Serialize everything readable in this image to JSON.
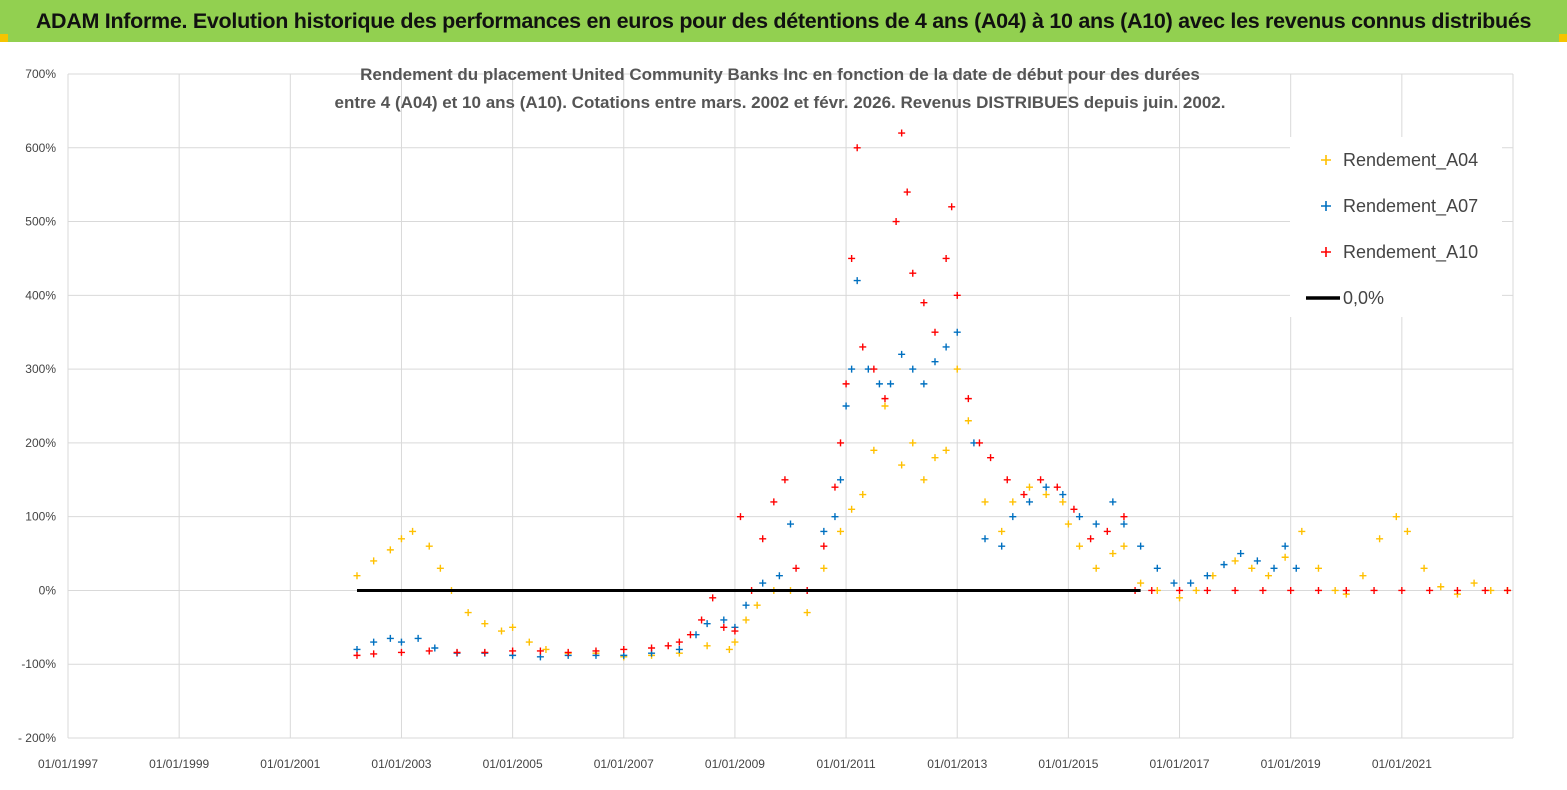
{
  "page": {
    "title": "ADAM Informe. Evolution historique des performances en euros pour des détentions de 4 ans (A04) à 10 ans (A10) avec les revenus connus distribués"
  },
  "colors": {
    "banner": "#92d050",
    "a04": "#ffc000",
    "a07": "#0070c0",
    "a10": "#ff0000",
    "zero": "#000000",
    "grid": "#d9d9d9"
  },
  "chart_data": {
    "type": "scatter",
    "title_lines": [
      "Rendement du placement United Community Banks Inc en fonction de la date de début pour des durées",
      "entre 4 (A04) et 10 ans (A10).  Cotations entre mars. 2002 et févr. 2026. Revenus DISTRIBUES depuis juin. 2002."
    ],
    "ylim": [
      -200,
      700
    ],
    "yticks": [
      -200,
      -100,
      0,
      100,
      200,
      300,
      400,
      500,
      600,
      700
    ],
    "ytick_labels": [
      "- 200%",
      "-100%",
      "0%",
      "100%",
      "200%",
      "300%",
      "400%",
      "500%",
      "600%",
      "700%"
    ],
    "xlim": [
      1997.0,
      2023.0
    ],
    "xticks": [
      1997,
      1999,
      2001,
      2003,
      2005,
      2007,
      2009,
      2011,
      2013,
      2015,
      2017,
      2019,
      2021
    ],
    "xtick_labels": [
      "01/01/1997",
      "01/01/1999",
      "01/01/2001",
      "01/01/2003",
      "01/01/2005",
      "01/01/2007",
      "01/01/2009",
      "01/01/2011",
      "01/01/2013",
      "01/01/2015",
      "01/01/2017",
      "01/01/2019",
      "01/01/2021"
    ],
    "legend_position": "top-right",
    "grid": true,
    "series": [
      {
        "name": "Rendement_A04",
        "color": "#ffc000",
        "x": [
          2002.2,
          2002.5,
          2002.8,
          2003.0,
          2003.2,
          2003.5,
          2003.7,
          2003.9,
          2004.2,
          2004.5,
          2004.8,
          2005.0,
          2005.3,
          2005.6,
          2006.0,
          2006.5,
          2007.0,
          2007.5,
          2008.0,
          2008.5,
          2008.9,
          2009.0,
          2009.2,
          2009.4,
          2009.7,
          2010.0,
          2010.3,
          2010.6,
          2010.9,
          2011.1,
          2011.3,
          2011.5,
          2011.7,
          2012.0,
          2012.2,
          2012.4,
          2012.6,
          2012.8,
          2013.0,
          2013.2,
          2013.5,
          2013.8,
          2014.0,
          2014.3,
          2014.6,
          2014.9,
          2015.0,
          2015.2,
          2015.5,
          2015.8,
          2016.0,
          2016.3,
          2016.6,
          2017.0,
          2017.3,
          2017.6,
          2018.0,
          2018.3,
          2018.6,
          2018.9,
          2019.2,
          2019.5,
          2019.8,
          2020.0,
          2020.3,
          2020.6,
          2020.9,
          2021.1,
          2021.4,
          2021.7,
          2022.0,
          2022.3,
          2022.6,
          2022.9
        ],
        "y": [
          20,
          40,
          55,
          70,
          80,
          60,
          30,
          0,
          -30,
          -45,
          -55,
          -50,
          -70,
          -80,
          -85,
          -85,
          -90,
          -88,
          -85,
          -75,
          -80,
          -70,
          -40,
          -20,
          0,
          0,
          -30,
          30,
          80,
          110,
          130,
          190,
          250,
          170,
          200,
          150,
          180,
          190,
          300,
          230,
          120,
          80,
          120,
          140,
          130,
          120,
          90,
          60,
          30,
          50,
          60,
          10,
          0,
          -10,
          0,
          20,
          40,
          30,
          20,
          45,
          80,
          30,
          0,
          -5,
          20,
          70,
          100,
          80,
          30,
          5,
          -5,
          10,
          0,
          0
        ]
      },
      {
        "name": "Rendement_A07",
        "color": "#0070c0",
        "x": [
          2002.2,
          2002.5,
          2002.8,
          2003.0,
          2003.3,
          2003.6,
          2004.0,
          2004.5,
          2005.0,
          2005.5,
          2006.0,
          2006.5,
          2007.0,
          2007.5,
          2008.0,
          2008.3,
          2008.5,
          2008.8,
          2009.0,
          2009.2,
          2009.5,
          2009.8,
          2010.0,
          2010.3,
          2010.6,
          2010.8,
          2010.9,
          2011.0,
          2011.1,
          2011.2,
          2011.4,
          2011.6,
          2011.8,
          2012.0,
          2012.2,
          2012.4,
          2012.6,
          2012.8,
          2013.0,
          2013.3,
          2013.5,
          2013.8,
          2014.0,
          2014.3,
          2014.6,
          2014.9,
          2015.2,
          2015.5,
          2015.8,
          2016.0,
          2016.3,
          2016.6,
          2016.9,
          2017.2,
          2017.5,
          2017.8,
          2018.1,
          2018.4,
          2018.7,
          2018.9,
          2019.1
        ],
        "y": [
          -80,
          -70,
          -65,
          -70,
          -65,
          -78,
          -85,
          -85,
          -88,
          -90,
          -88,
          -88,
          -88,
          -85,
          -80,
          -60,
          -45,
          -40,
          -50,
          -20,
          10,
          20,
          90,
          0,
          80,
          100,
          150,
          250,
          300,
          420,
          300,
          280,
          280,
          320,
          300,
          280,
          310,
          330,
          350,
          200,
          70,
          60,
          100,
          120,
          140,
          130,
          100,
          90,
          120,
          90,
          60,
          30,
          10,
          10,
          20,
          35,
          50,
          40,
          30,
          60,
          30
        ]
      },
      {
        "name": "Rendement_A10",
        "color": "#ff0000",
        "x": [
          2002.2,
          2002.5,
          2003.0,
          2003.5,
          2004.0,
          2004.5,
          2005.0,
          2005.5,
          2006.0,
          2006.5,
          2007.0,
          2007.5,
          2007.8,
          2008.0,
          2008.2,
          2008.4,
          2008.6,
          2008.8,
          2009.0,
          2009.1,
          2009.3,
          2009.5,
          2009.7,
          2009.9,
          2010.1,
          2010.3,
          2010.6,
          2010.8,
          2010.9,
          2011.0,
          2011.1,
          2011.2,
          2011.3,
          2011.5,
          2011.7,
          2011.9,
          2012.0,
          2012.1,
          2012.2,
          2012.4,
          2012.6,
          2012.8,
          2012.9,
          2013.0,
          2013.2,
          2013.4,
          2013.6,
          2013.9,
          2014.2,
          2014.5,
          2014.8,
          2015.1,
          2015.4,
          2015.7,
          2016.0,
          2016.2,
          2016.5,
          2017.0,
          2017.5,
          2018.0,
          2018.5,
          2019.0,
          2019.5,
          2020.0,
          2020.5,
          2021.0,
          2021.5,
          2022.0,
          2022.5,
          2022.9
        ],
        "y": [
          -88,
          -86,
          -84,
          -82,
          -84,
          -84,
          -82,
          -82,
          -84,
          -82,
          -80,
          -78,
          -75,
          -70,
          -60,
          -40,
          -10,
          -50,
          -55,
          100,
          0,
          70,
          120,
          150,
          30,
          0,
          60,
          140,
          200,
          280,
          450,
          600,
          330,
          300,
          260,
          500,
          620,
          540,
          430,
          390,
          350,
          450,
          520,
          400,
          260,
          200,
          180,
          150,
          130,
          150,
          140,
          110,
          70,
          80,
          100,
          0,
          0,
          0,
          0,
          0,
          0,
          0,
          0,
          0,
          0,
          0,
          0,
          0,
          0,
          0
        ]
      },
      {
        "name": "0,0%",
        "color": "#000000",
        "x": [
          2002.2,
          2016.3
        ],
        "y": [
          0,
          0
        ]
      }
    ]
  }
}
